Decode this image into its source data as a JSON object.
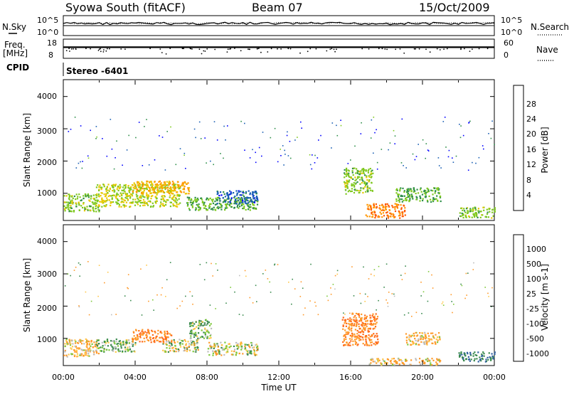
{
  "header": {
    "station": "Syowa South (fitACF)",
    "beam": "Beam 07",
    "date": "15/Oct/2009"
  },
  "strips": {
    "nsky_label": "N.Sky",
    "nsky_ticks": [
      "10^5",
      "10^0"
    ],
    "nsearch_ticks": [
      "10^5",
      "10^0"
    ],
    "nsearch_label": "N.Search",
    "freq_label_1": "Freq.",
    "freq_label_2": "[MHz]",
    "freq_ticks": [
      "18",
      "8"
    ],
    "nave_ticks": [
      "60",
      "0"
    ],
    "nave_label": "Nave",
    "cpid_label": "CPID",
    "cpid_value": "Stereo -6401"
  },
  "panels": {
    "ylabel": "Slant Range [km]",
    "xlabel": "Time UT",
    "y_ticks": [
      "4000",
      "3000",
      "2000",
      "1000"
    ],
    "x_ticks": [
      "00:00",
      "04:00",
      "08:00",
      "12:00",
      "16:00",
      "20:00",
      "00:00"
    ]
  },
  "power_scale": {
    "label": "Power [dB]",
    "ticks": [
      "28",
      "24",
      "20",
      "16",
      "12",
      "8",
      "4"
    ],
    "colors": [
      "#ff0000",
      "#ff5a00",
      "#ff9600",
      "#e8c800",
      "#7fc81e",
      "#2f8f4a",
      "#1a5fb4",
      "#0000ff"
    ]
  },
  "velocity_scale": {
    "label": "Velocity [m s-1]",
    "ticks": [
      "1000",
      "500",
      "100",
      "25",
      "-25",
      "-100",
      "-500",
      "-1000"
    ],
    "colors": [
      "#1f3fc8",
      "#2f5f9f",
      "#3a8a4e",
      "#7ec83a",
      "#bdbdbd",
      "#ffc84a",
      "#ff9a2a",
      "#ff6a1a",
      "#ff1a00"
    ]
  },
  "chart_data": [
    {
      "type": "heatmap",
      "title": "Power",
      "xlabel": "Time UT",
      "ylabel": "Slant Range [km]",
      "xlim": [
        0,
        24
      ],
      "ylim": [
        180,
        4500
      ],
      "colorbar": {
        "label": "Power [dB]",
        "range": [
          0,
          32
        ]
      },
      "regions": [
        {
          "t0": 0.0,
          "t1": 2.0,
          "r0": 450,
          "r1": 1000,
          "v": 14
        },
        {
          "t0": 1.8,
          "t1": 6.5,
          "r0": 600,
          "r1": 1300,
          "v": 16
        },
        {
          "t0": 3.8,
          "t1": 7.0,
          "r0": 1000,
          "r1": 1400,
          "v": 20
        },
        {
          "t0": 6.8,
          "t1": 10.8,
          "r0": 500,
          "r1": 900,
          "v": 12
        },
        {
          "t0": 8.5,
          "t1": 10.8,
          "r0": 700,
          "r1": 1100,
          "v": 6
        },
        {
          "t0": 15.6,
          "t1": 17.2,
          "r0": 1000,
          "r1": 1800,
          "v": 14
        },
        {
          "t0": 16.8,
          "t1": 19.0,
          "r0": 250,
          "r1": 700,
          "v": 24
        },
        {
          "t0": 18.5,
          "t1": 21.0,
          "r0": 750,
          "r1": 1200,
          "v": 12
        },
        {
          "t0": 22.0,
          "t1": 24.0,
          "r0": 250,
          "r1": 600,
          "v": 14
        }
      ]
    },
    {
      "type": "heatmap",
      "title": "Velocity",
      "xlabel": "Time UT",
      "ylabel": "Slant Range [km]",
      "xlim": [
        0,
        24
      ],
      "ylim": [
        180,
        4500
      ],
      "colorbar": {
        "label": "Velocity [m s-1]",
        "range": [
          -1000,
          1000
        ]
      },
      "regions": [
        {
          "t0": 0.0,
          "t1": 2.0,
          "r0": 450,
          "r1": 1000,
          "v": -100
        },
        {
          "t0": 1.8,
          "t1": 4.0,
          "r0": 600,
          "r1": 1000,
          "v": 100
        },
        {
          "t0": 3.8,
          "t1": 6.0,
          "r0": 900,
          "r1": 1300,
          "v": -500
        },
        {
          "t0": 5.5,
          "t1": 7.5,
          "r0": 600,
          "r1": 1000,
          "v": 0
        },
        {
          "t0": 7.0,
          "t1": 8.2,
          "r0": 1000,
          "r1": 1600,
          "v": 100
        },
        {
          "t0": 8.0,
          "t1": 10.8,
          "r0": 500,
          "r1": 900,
          "v": 0
        },
        {
          "t0": 15.5,
          "t1": 17.5,
          "r0": 800,
          "r1": 1800,
          "v": -500
        },
        {
          "t0": 17.0,
          "t1": 21.0,
          "r0": 200,
          "r1": 400,
          "v": -100
        },
        {
          "t0": 19.0,
          "t1": 21.0,
          "r0": 800,
          "r1": 1200,
          "v": -100
        },
        {
          "t0": 22.0,
          "t1": 24.0,
          "r0": 300,
          "r1": 600,
          "v": 500
        }
      ]
    }
  ]
}
